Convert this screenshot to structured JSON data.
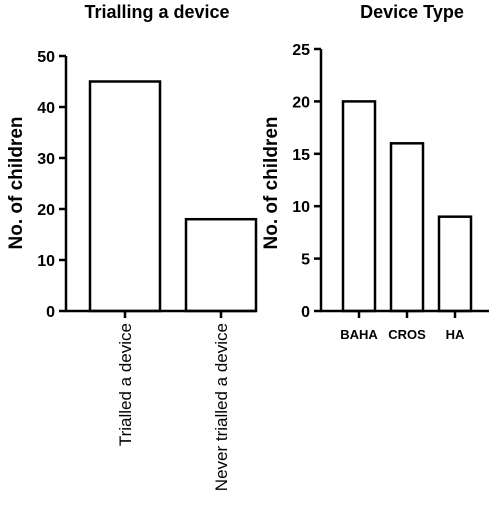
{
  "chart_data": [
    {
      "type": "bar",
      "title": "Trialling a device",
      "xlabel": "",
      "ylabel": "No. of children",
      "ylim": [
        0,
        50
      ],
      "yticks": [
        0,
        10,
        20,
        30,
        40,
        50
      ],
      "categories": [
        "Trialled a device",
        "Never trialled a device"
      ],
      "values": [
        45,
        18
      ],
      "category_label_orientation": "vertical",
      "grid": false
    },
    {
      "type": "bar",
      "title": "Device Type",
      "xlabel": "",
      "ylabel": "No. of children",
      "ylim": [
        0,
        25
      ],
      "yticks": [
        0,
        5,
        10,
        15,
        20,
        25
      ],
      "categories": [
        "BAHA",
        "CROS",
        "HA"
      ],
      "values": [
        20,
        16,
        9
      ],
      "category_label_orientation": "horizontal",
      "grid": false
    }
  ]
}
